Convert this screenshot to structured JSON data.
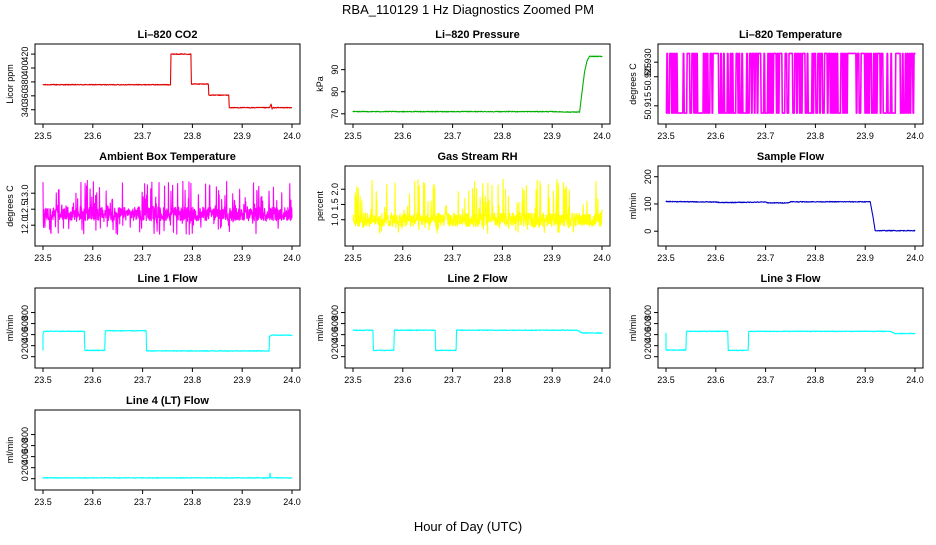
{
  "figure": {
    "title": "RBA_110129  1 Hz Diagnostics Zoomed PM",
    "xlabel": "Hour of Day (UTC)"
  },
  "chart_data": [
    {
      "type": "line",
      "title": "Li–820 CO2",
      "ylabel": "Licor ppm",
      "color": "#e00000",
      "xlim": [
        23.5,
        24.0
      ],
      "ylim": [
        331,
        423
      ],
      "xticks": [
        "23.5",
        "23.6",
        "23.7",
        "23.8",
        "23.9",
        "24.0"
      ],
      "yticks": [
        340,
        360,
        380,
        400,
        420
      ],
      "x": [
        23.5,
        23.756,
        23.757,
        23.797,
        23.798,
        23.832,
        23.833,
        23.873,
        23.874,
        23.955,
        23.958,
        23.96,
        23.962,
        23.963,
        24.0
      ],
      "y": [
        376,
        376,
        420,
        420,
        377,
        377,
        361,
        361,
        343,
        343,
        348,
        341,
        343,
        343,
        343
      ]
    },
    {
      "type": "line",
      "title": "Li–820 Pressure",
      "ylabel": "kPa",
      "color": "#00b000",
      "xlim": [
        23.5,
        24.0
      ],
      "ylim": [
        69,
        98
      ],
      "xticks": [
        "23.5",
        "23.6",
        "23.7",
        "23.8",
        "23.9",
        "24.0"
      ],
      "yticks": [
        70,
        80,
        90
      ],
      "x": [
        23.5,
        23.9,
        23.93,
        23.955,
        23.96,
        23.965,
        23.97,
        23.975,
        24.0
      ],
      "y": [
        71,
        71,
        70.8,
        70.8,
        80,
        89,
        94,
        96,
        96
      ]
    },
    {
      "type": "line",
      "title": "Li–820 Temperature",
      "ylabel": "degrees C",
      "color": "#ff00ff",
      "xlim": [
        23.5,
        24.0
      ],
      "ylim": [
        50.9115,
        50.9335
      ],
      "xticks": [
        "23.5",
        "23.6",
        "23.7",
        "23.8",
        "23.9",
        "24.0"
      ],
      "yticks": [
        50.915,
        50.925,
        50.93
      ],
      "ytick_labels": [
        "50.915",
        "50.925",
        "50.930"
      ],
      "levels": [
        50.9125,
        50.933
      ],
      "note_values": "signal toggles between 50.9125 and 50.9330 throughout"
    },
    {
      "type": "line",
      "title": "Ambient Box Temperature",
      "ylabel": "degrees C",
      "color": "#ff00ff",
      "xlim": [
        23.5,
        24.0
      ],
      "ylim": [
        11.6,
        13.6
      ],
      "xticks": [
        "23.5",
        "23.6",
        "23.7",
        "23.8",
        "23.9",
        "24.0"
      ],
      "yticks": [
        12.0,
        12.5,
        13.0
      ],
      "ytick_labels": [
        "12.0",
        "12.5",
        "13.0"
      ],
      "mean": 12.35,
      "min": 11.7,
      "max": 13.4
    },
    {
      "type": "line",
      "title": "Gas Stream RH",
      "ylabel": "percent",
      "color": "#ffff00",
      "xlim": [
        23.5,
        24.0
      ],
      "ylim": [
        0.4,
        2.5
      ],
      "xticks": [
        "23.5",
        "23.6",
        "23.7",
        "23.8",
        "23.9",
        "24.0"
      ],
      "yticks": [
        1.0,
        1.5,
        2.0
      ],
      "ytick_labels": [
        "1.0",
        "1.5",
        "2.0"
      ],
      "mean": 1.0,
      "min": 0.55,
      "max": 2.35
    },
    {
      "type": "line",
      "title": "Sample Flow",
      "ylabel": "ml/min",
      "color": "#0000cc",
      "xlim": [
        23.5,
        24.0
      ],
      "ylim": [
        -25,
        210
      ],
      "xticks": [
        "23.5",
        "23.6",
        "23.7",
        "23.8",
        "23.9",
        "24.0"
      ],
      "yticks": [
        0,
        100,
        200
      ],
      "x": [
        23.5,
        23.6,
        23.61,
        23.7,
        23.705,
        23.745,
        23.75,
        23.91,
        23.915,
        23.92,
        24.0
      ],
      "y": [
        109,
        107,
        105,
        107,
        104,
        104,
        108,
        108,
        60,
        2,
        2
      ]
    },
    {
      "type": "line",
      "title": "Line 1 Flow",
      "ylabel": "ml/min",
      "color": "#00ffff",
      "xlim": [
        23.5,
        24.0
      ],
      "ylim": [
        -60,
        1100
      ],
      "xticks": [
        "23.5",
        "23.6",
        "23.7",
        "23.8",
        "23.9",
        "24.0"
      ],
      "yticks": [
        0,
        200,
        400,
        600,
        800
      ],
      "x": [
        23.5,
        23.5,
        23.502,
        23.583,
        23.584,
        23.624,
        23.625,
        23.707,
        23.708,
        23.954,
        23.955,
        23.96,
        24.0
      ],
      "y": [
        120,
        410,
        460,
        460,
        115,
        115,
        470,
        470,
        105,
        105,
        370,
        390,
        390
      ]
    },
    {
      "type": "line",
      "title": "Line 2 Flow",
      "ylabel": "ml/min",
      "color": "#00ffff",
      "xlim": [
        23.5,
        24.0
      ],
      "ylim": [
        -60,
        1100
      ],
      "xticks": [
        "23.5",
        "23.6",
        "23.7",
        "23.8",
        "23.9",
        "24.0"
      ],
      "yticks": [
        0,
        200,
        400,
        600,
        800
      ],
      "x": [
        23.5,
        23.54,
        23.541,
        23.582,
        23.583,
        23.665,
        23.666,
        23.707,
        23.708,
        23.95,
        23.96,
        24.0
      ],
      "y": [
        480,
        480,
        115,
        115,
        480,
        480,
        115,
        115,
        480,
        480,
        430,
        430
      ]
    },
    {
      "type": "line",
      "title": "Line 3 Flow",
      "ylabel": "ml/min",
      "color": "#00ffff",
      "xlim": [
        23.5,
        24.0
      ],
      "ylim": [
        -60,
        1100
      ],
      "xticks": [
        "23.5",
        "23.6",
        "23.7",
        "23.8",
        "23.9",
        "24.0"
      ],
      "yticks": [
        0,
        200,
        400,
        600,
        800
      ],
      "x": [
        23.5,
        23.5,
        23.502,
        23.54,
        23.541,
        23.624,
        23.625,
        23.665,
        23.666,
        23.95,
        23.96,
        24.0
      ],
      "y": [
        430,
        120,
        120,
        120,
        460,
        460,
        115,
        115,
        460,
        460,
        420,
        420
      ]
    },
    {
      "type": "line",
      "title": "Line 4 (LT) Flow",
      "ylabel": "ml/min",
      "color": "#00ffff",
      "xlim": [
        23.5,
        24.0
      ],
      "ylim": [
        -60,
        1100
      ],
      "xticks": [
        "23.5",
        "23.6",
        "23.7",
        "23.8",
        "23.9",
        "24.0"
      ],
      "yticks": [
        0,
        200,
        400,
        600,
        800
      ],
      "x": [
        23.5,
        23.955,
        23.956,
        23.957,
        23.958,
        24.0
      ],
      "y": [
        15,
        15,
        100,
        30,
        15,
        15
      ]
    }
  ]
}
